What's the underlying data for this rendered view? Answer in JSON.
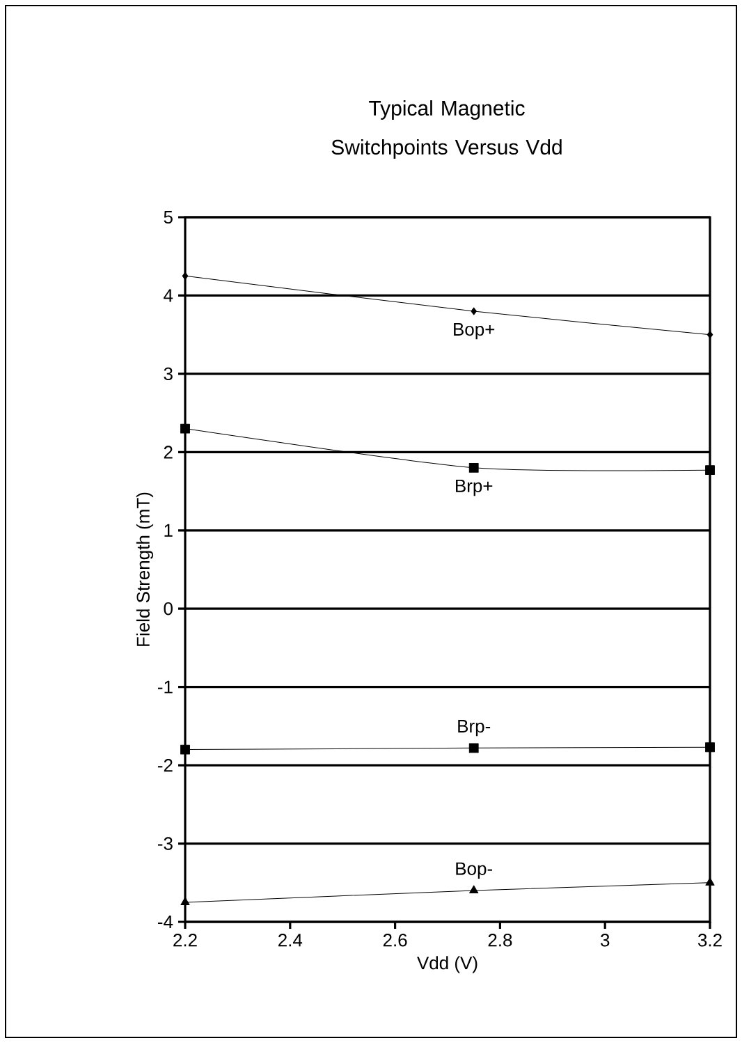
{
  "chart_data": {
    "type": "line",
    "title": "Typical Magnetic Switchpoints Versus Vdd",
    "xlabel": "Vdd (V)",
    "ylabel": "Field Strength (mT)",
    "x": [
      2.2,
      2.75,
      3.2
    ],
    "series": [
      {
        "name": "Bop+",
        "color": "#000000",
        "marker": "diamond",
        "values": [
          4.25,
          3.8,
          3.5
        ]
      },
      {
        "name": "Brp+",
        "color": "#000000",
        "marker": "square",
        "values": [
          2.3,
          1.8,
          1.77
        ]
      },
      {
        "name": "Brp-",
        "color": "#000000",
        "marker": "square",
        "values": [
          -1.8,
          -1.78,
          -1.77
        ]
      },
      {
        "name": "Bop-",
        "color": "#000000",
        "marker": "triangle",
        "values": [
          -3.75,
          -3.6,
          -3.5
        ]
      }
    ],
    "xlim": [
      2.2,
      3.2
    ],
    "xticks": [
      2.2,
      2.4,
      2.6,
      2.8,
      3,
      3.2
    ],
    "ylim": [
      -4,
      5
    ],
    "yticks": [
      -4,
      -3,
      -2,
      -1,
      0,
      1,
      2,
      3,
      4,
      5
    ],
    "grid": "y",
    "line_style": "solid"
  }
}
